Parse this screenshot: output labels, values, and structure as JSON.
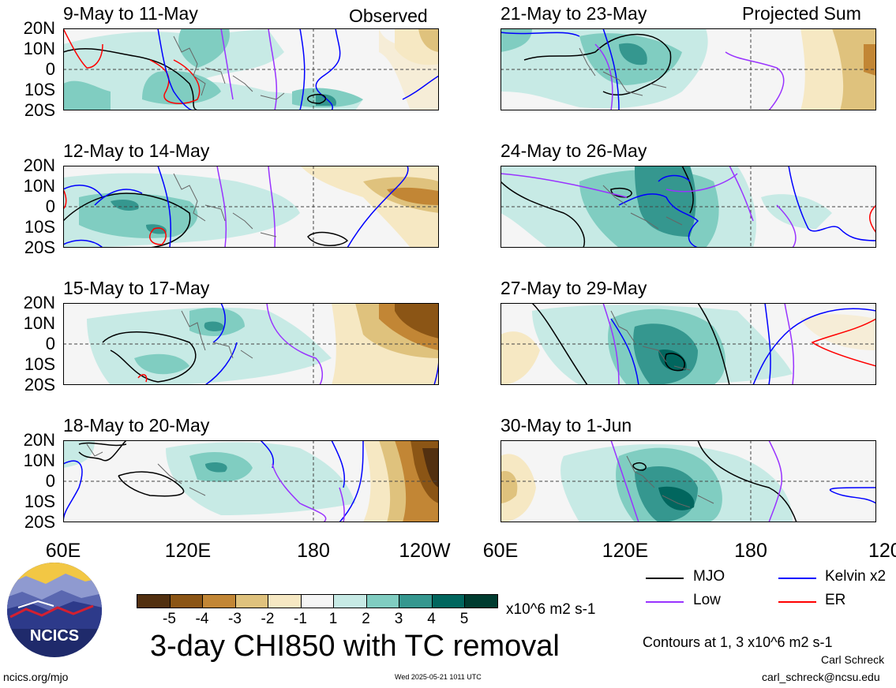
{
  "panels": [
    {
      "title": "9-May to 11-May",
      "tag": "Observed"
    },
    {
      "title": "21-May to 23-May",
      "tag": "Projected Sum"
    },
    {
      "title": "12-May to 14-May",
      "tag": ""
    },
    {
      "title": "24-May to 26-May",
      "tag": ""
    },
    {
      "title": "15-May to 17-May",
      "tag": ""
    },
    {
      "title": "27-May to 29-May",
      "tag": ""
    },
    {
      "title": "18-May to 20-May",
      "tag": ""
    },
    {
      "title": "30-May to 1-Jun",
      "tag": ""
    }
  ],
  "lat_labels": [
    "20N",
    "10N",
    "0",
    "10S",
    "20S"
  ],
  "lon_labels": [
    "60E",
    "120E",
    "180",
    "120W"
  ],
  "colorbar": {
    "labels": [
      "-5",
      "-4",
      "-3",
      "-2",
      "-1",
      "1",
      "2",
      "3",
      "4",
      "5"
    ],
    "colors": [
      "#523010",
      "#8b5515",
      "#c28635",
      "#dfc27d",
      "#f6e8c3",
      "#f5f5f5",
      "#c7eae5",
      "#80cdc1",
      "#35978f",
      "#01665e",
      "#003c30"
    ],
    "units": "x10^6 m2 s-1"
  },
  "legend": [
    {
      "label": "MJO",
      "color": "#000000"
    },
    {
      "label": "Kelvin x2",
      "color": "#0000ff"
    },
    {
      "label": "Low",
      "color": "#9933ff"
    },
    {
      "label": "ER",
      "color": "#ff0000"
    }
  ],
  "main_title": "3-day CHI850 with TC removal",
  "contour_note": "Contours at 1, 3 x10^6 m2 s-1",
  "author": "Carl Schreck",
  "email": "carl_schreck@ncsu.edu",
  "site": "ncics.org/mjo",
  "timestamp": "Wed 2025-05-21 1011 UTC",
  "logo_text": "NCICS"
}
